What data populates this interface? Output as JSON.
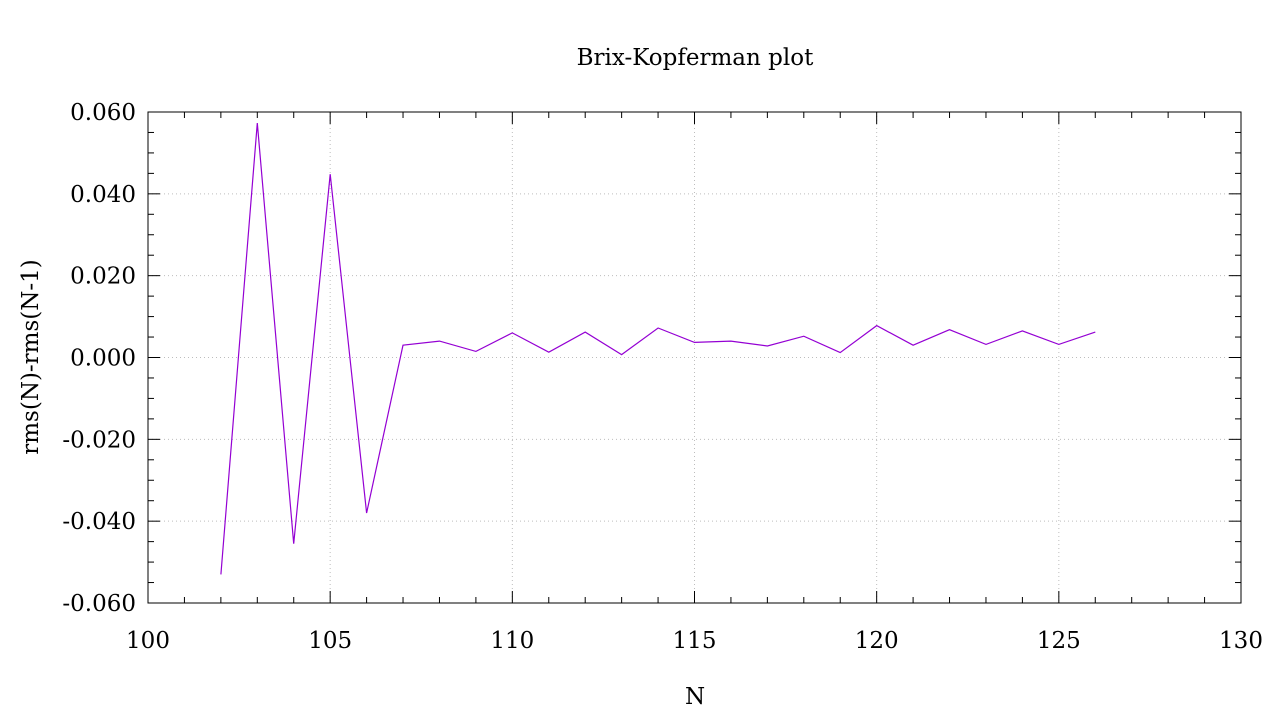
{
  "chart_data": {
    "type": "line",
    "title": "Brix-Kopferman plot",
    "xlabel": "N",
    "ylabel": "rms(N)-rms(N-1)",
    "xlim": [
      100,
      130
    ],
    "ylim": [
      -0.06,
      0.06
    ],
    "x_ticks": [
      100,
      105,
      110,
      115,
      120,
      125,
      130
    ],
    "x_tick_labels": [
      "100",
      "105",
      "110",
      "115",
      "120",
      "125",
      "130"
    ],
    "y_ticks": [
      -0.06,
      -0.04,
      -0.02,
      0.0,
      0.02,
      0.04,
      0.06
    ],
    "y_tick_labels": [
      "-0.060",
      "-0.040",
      "-0.020",
      "0.000",
      "0.020",
      "0.040",
      "0.060"
    ],
    "grid": true,
    "series": [
      {
        "color": "#9400d3",
        "x": [
          102,
          103,
          104,
          105,
          106,
          107,
          108,
          109,
          110,
          111,
          112,
          113,
          114,
          115,
          116,
          117,
          118,
          119,
          120,
          121,
          122,
          123,
          124,
          125,
          126
        ],
        "y": [
          -0.053,
          0.0573,
          -0.0455,
          0.0448,
          -0.038,
          0.003,
          0.004,
          0.0015,
          0.006,
          0.0013,
          0.0062,
          0.0007,
          0.0072,
          0.0037,
          0.004,
          0.0028,
          0.0052,
          0.0012,
          0.0078,
          0.003,
          0.0068,
          0.0032,
          0.0065,
          0.0032,
          0.0062
        ]
      }
    ]
  }
}
